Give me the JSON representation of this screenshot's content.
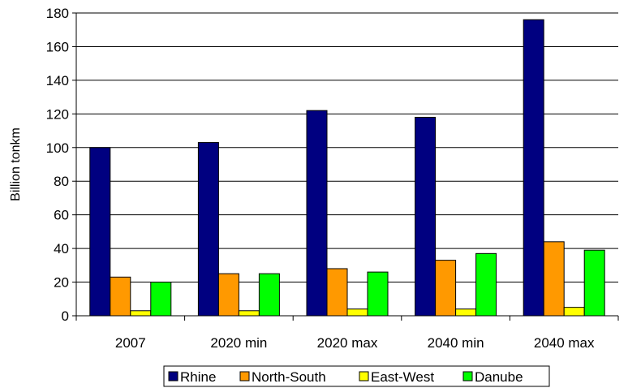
{
  "chart_data": {
    "type": "bar",
    "categories": [
      "2007",
      "2020 min",
      "2020 max",
      "2040 min",
      "2040 max"
    ],
    "series": [
      {
        "name": "Rhine",
        "values": [
          100,
          103,
          122,
          118,
          176
        ],
        "color": "#000080"
      },
      {
        "name": "North-South",
        "values": [
          23,
          25,
          28,
          33,
          44
        ],
        "color": "#FF9900"
      },
      {
        "name": "East-West",
        "values": [
          3,
          3,
          4,
          4,
          5
        ],
        "color": "#FFFF00"
      },
      {
        "name": "Danube",
        "values": [
          20,
          25,
          26,
          37,
          39
        ],
        "color": "#00FF00"
      }
    ],
    "ylabel": "Billion tonkm",
    "xlabel": "",
    "ylim": [
      0,
      180
    ],
    "yticks": [
      0,
      20,
      40,
      60,
      80,
      100,
      120,
      140,
      160,
      180
    ],
    "grid": true,
    "legend_position": "bottom"
  }
}
